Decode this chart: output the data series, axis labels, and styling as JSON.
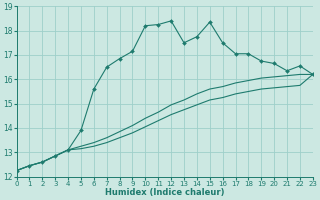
{
  "xlabel": "Humidex (Indice chaleur)",
  "bg_color": "#cce8e2",
  "grid_color": "#9ecfca",
  "line_color": "#1e7b6e",
  "xmin": 0,
  "xmax": 23,
  "ymin": 12,
  "ymax": 19,
  "x_values": [
    0,
    1,
    2,
    3,
    4,
    5,
    6,
    7,
    8,
    9,
    10,
    11,
    12,
    13,
    14,
    15,
    16,
    17,
    18,
    19,
    20,
    21,
    22,
    23
  ],
  "line_top": [
    12.25,
    12.45,
    12.6,
    12.85,
    13.1,
    13.9,
    15.6,
    16.5,
    16.85,
    17.15,
    18.2,
    18.25,
    18.4,
    17.5,
    17.75,
    18.35,
    17.5,
    17.05,
    17.05,
    16.75,
    16.65,
    16.35,
    16.55,
    16.2
  ],
  "line_mid": [
    12.25,
    12.45,
    12.6,
    12.85,
    13.1,
    13.25,
    13.4,
    13.6,
    13.85,
    14.1,
    14.4,
    14.65,
    14.95,
    15.15,
    15.4,
    15.6,
    15.7,
    15.85,
    15.95,
    16.05,
    16.1,
    16.15,
    16.2,
    16.2
  ],
  "line_bot": [
    12.25,
    12.45,
    12.6,
    12.85,
    13.1,
    13.15,
    13.25,
    13.4,
    13.6,
    13.8,
    14.05,
    14.3,
    14.55,
    14.75,
    14.95,
    15.15,
    15.25,
    15.4,
    15.5,
    15.6,
    15.65,
    15.7,
    15.75,
    16.2
  ]
}
